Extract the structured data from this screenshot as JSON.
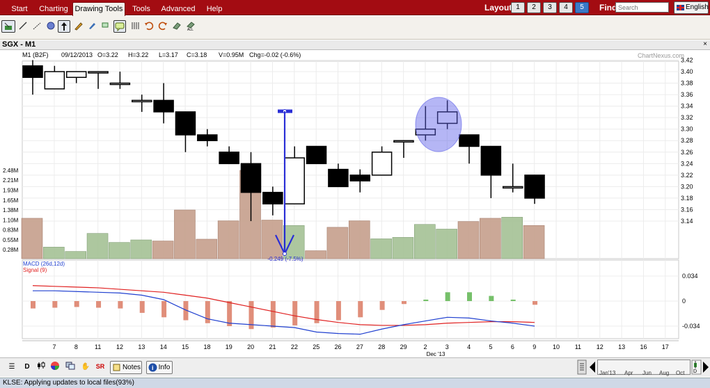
{
  "menu": {
    "tabs": [
      "Start",
      "Charting",
      "Drawing Tools",
      "Tools",
      "Advanced",
      "Help"
    ],
    "active_tab": "Drawing Tools"
  },
  "layout": {
    "label": "Layout:",
    "buttons": [
      "1",
      "2",
      "3",
      "4",
      "5"
    ],
    "active": "5"
  },
  "find": {
    "label": "Find",
    "placeholder": "Search"
  },
  "language": {
    "label": "English"
  },
  "chart_header": {
    "symbol": "SGX - M1"
  },
  "quote": {
    "name": "M1 (B2F)",
    "date": "09/12/2013",
    "open": "O=3.22",
    "high": "H=3.22",
    "low": "L=3.17",
    "close": "C=3.18",
    "volume": "V=0.95M",
    "change": "Chg=-0.02 (-0.6%)"
  },
  "watermark": "ChartNexus.com",
  "chart_data": {
    "type": "candlestick",
    "price_ticks": [
      "3.42",
      "3.40",
      "3.38",
      "3.36",
      "3.34",
      "3.32",
      "3.30",
      "3.28",
      "3.26",
      "3.24",
      "3.22",
      "3.20",
      "3.18",
      "3.16",
      "3.14"
    ],
    "volume_ticks": [
      "2.48M",
      "2.21M",
      "1.93M",
      "1.65M",
      "1.38M",
      "1.10M",
      "0.83M",
      "0.55M",
      "0.28M"
    ],
    "macd_ticks": [
      "0.034",
      "0",
      "-0.034"
    ],
    "macd_label": "MACD (26d,12d)",
    "signal_label": "Signal (9)",
    "date_ticks": [
      "7",
      "8",
      "11",
      "12",
      "13",
      "14",
      "15",
      "18",
      "19",
      "20",
      "21",
      "22",
      "25",
      "26",
      "27",
      "28",
      "29",
      "2",
      "3",
      "4",
      "5",
      "6",
      "9",
      "10",
      "11",
      "12",
      "13",
      "16",
      "17"
    ],
    "month_label": "Dec '13",
    "measure_label": "-0.249 (-7.5%)",
    "candles": [
      {
        "o": 3.41,
        "h": 3.42,
        "l": 3.36,
        "c": 3.39
      },
      {
        "o": 3.37,
        "h": 3.41,
        "l": 3.37,
        "c": 3.4
      },
      {
        "o": 3.39,
        "h": 3.4,
        "l": 3.38,
        "c": 3.4
      },
      {
        "o": 3.4,
        "h": 3.4,
        "l": 3.37,
        "c": 3.4
      },
      {
        "o": 3.38,
        "h": 3.4,
        "l": 3.37,
        "c": 3.38
      },
      {
        "o": 3.35,
        "h": 3.36,
        "l": 3.33,
        "c": 3.35
      },
      {
        "o": 3.35,
        "h": 3.38,
        "l": 3.31,
        "c": 3.33
      },
      {
        "o": 3.33,
        "h": 3.33,
        "l": 3.26,
        "c": 3.29
      },
      {
        "o": 3.29,
        "h": 3.3,
        "l": 3.27,
        "c": 3.28
      },
      {
        "o": 3.26,
        "h": 3.27,
        "l": 3.24,
        "c": 3.24
      },
      {
        "o": 3.24,
        "h": 3.26,
        "l": 3.14,
        "c": 3.19
      },
      {
        "o": 3.19,
        "h": 3.2,
        "l": 3.15,
        "c": 3.17
      },
      {
        "o": 3.17,
        "h": 3.27,
        "l": 3.17,
        "c": 3.25
      },
      {
        "o": 3.27,
        "h": 3.27,
        "l": 3.24,
        "c": 3.24
      },
      {
        "o": 3.23,
        "h": 3.24,
        "l": 3.2,
        "c": 3.2
      },
      {
        "o": 3.22,
        "h": 3.23,
        "l": 3.19,
        "c": 3.21
      },
      {
        "o": 3.22,
        "h": 3.27,
        "l": 3.22,
        "c": 3.26
      },
      {
        "o": 3.28,
        "h": 3.28,
        "l": 3.25,
        "c": 3.28
      },
      {
        "o": 3.29,
        "h": 3.34,
        "l": 3.28,
        "c": 3.3
      },
      {
        "o": 3.31,
        "h": 3.35,
        "l": 3.3,
        "c": 3.33
      },
      {
        "o": 3.29,
        "h": 3.29,
        "l": 3.24,
        "c": 3.27
      },
      {
        "o": 3.27,
        "h": 3.27,
        "l": 3.18,
        "c": 3.22
      },
      {
        "o": 3.2,
        "h": 3.24,
        "l": 3.19,
        "c": 3.2
      },
      {
        "o": 3.22,
        "h": 3.22,
        "l": 3.17,
        "c": 3.18
      }
    ],
    "volume": [
      1.15,
      0.35,
      0.23,
      0.73,
      0.48,
      0.55,
      0.52,
      1.38,
      0.57,
      1.08,
      2.48,
      1.1,
      0.95,
      0.25,
      0.9,
      1.08,
      0.58,
      0.62,
      0.98,
      0.85,
      1.06,
      1.15,
      1.18,
      0.95
    ],
    "macd_hist": [
      -0.01,
      -0.009,
      -0.008,
      -0.009,
      -0.01,
      -0.016,
      -0.022,
      -0.026,
      -0.03,
      -0.034,
      -0.038,
      -0.036,
      -0.033,
      -0.03,
      -0.026,
      -0.022,
      -0.012,
      -0.004,
      0.002,
      0.012,
      0.012,
      0.007,
      0.002,
      -0.005
    ],
    "macd": [
      0.014,
      0.014,
      0.013,
      0.012,
      0.011,
      0.008,
      0.002,
      -0.012,
      -0.024,
      -0.03,
      -0.032,
      -0.034,
      -0.036,
      -0.042,
      -0.044,
      -0.045,
      -0.038,
      -0.032,
      -0.027,
      -0.022,
      -0.023,
      -0.027,
      -0.03,
      -0.034
    ],
    "signal": [
      0.021,
      0.02,
      0.019,
      0.018,
      0.016,
      0.014,
      0.012,
      0.008,
      0.004,
      -0.002,
      -0.008,
      -0.014,
      -0.02,
      -0.025,
      -0.029,
      -0.032,
      -0.033,
      -0.033,
      -0.032,
      -0.03,
      -0.029,
      -0.028,
      -0.028,
      -0.029
    ]
  },
  "bottom": {
    "notes_label": "Notes",
    "info_label": "Info",
    "nav_labels": [
      "Jan'13",
      "Apr",
      "Jun",
      "Aug",
      "Oct",
      "D"
    ]
  },
  "status": {
    "text": "KLSE: Applying updates to local files(93%)"
  }
}
